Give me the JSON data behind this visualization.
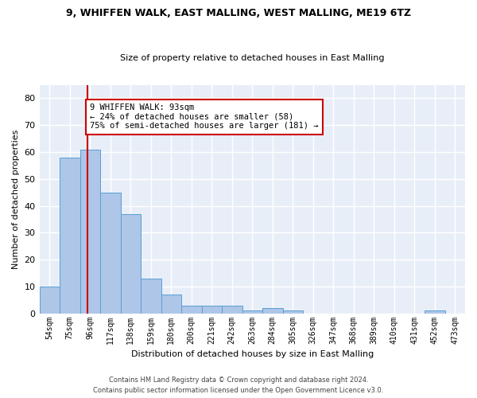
{
  "title_line1": "9, WHIFFEN WALK, EAST MALLING, WEST MALLING, ME19 6TZ",
  "title_line2": "Size of property relative to detached houses in East Malling",
  "xlabel": "Distribution of detached houses by size in East Malling",
  "ylabel": "Number of detached properties",
  "bin_labels": [
    "54sqm",
    "75sqm",
    "96sqm",
    "117sqm",
    "138sqm",
    "159sqm",
    "180sqm",
    "200sqm",
    "221sqm",
    "242sqm",
    "263sqm",
    "284sqm",
    "305sqm",
    "326sqm",
    "347sqm",
    "368sqm",
    "389sqm",
    "410sqm",
    "431sqm",
    "452sqm",
    "473sqm"
  ],
  "bar_values": [
    10,
    58,
    61,
    45,
    37,
    13,
    7,
    3,
    3,
    3,
    1,
    2,
    1,
    0,
    0,
    0,
    0,
    0,
    0,
    1,
    0
  ],
  "bar_color": "#aec6e8",
  "bar_edgecolor": "#5a9fd4",
  "annotation_text_line1": "9 WHIFFEN WALK: 93sqm",
  "annotation_text_line2": "← 24% of detached houses are smaller (58)",
  "annotation_text_line3": "75% of semi-detached houses are larger (181) →",
  "annotation_box_color": "#ffffff",
  "annotation_box_edgecolor": "#cc0000",
  "vline_color": "#cc0000",
  "ylim": [
    0,
    85
  ],
  "yticks": [
    0,
    10,
    20,
    30,
    40,
    50,
    60,
    70,
    80
  ],
  "background_color": "#e8eef8",
  "grid_color": "#ffffff",
  "fig_facecolor": "#ffffff",
  "footer_line1": "Contains HM Land Registry data © Crown copyright and database right 2024.",
  "footer_line2": "Contains public sector information licensed under the Open Government Licence v3.0."
}
